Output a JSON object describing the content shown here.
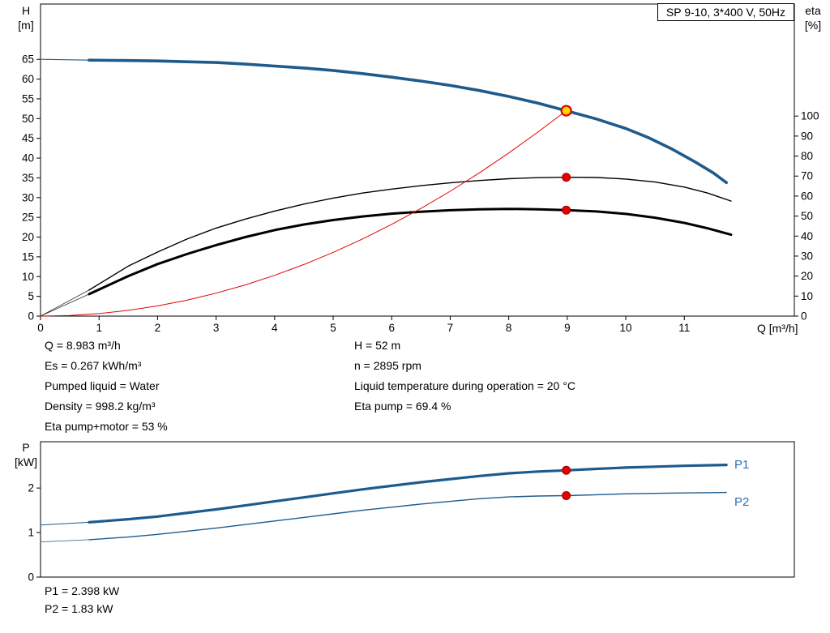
{
  "title_box": {
    "text": "SP 9-10, 3*400 V, 50Hz"
  },
  "axis_labels": {
    "h_top": "H",
    "h_bottom": "[m]",
    "eta_top": "eta",
    "eta_bottom": "[%]",
    "q": "Q [m³/h]",
    "p_top": "P",
    "p_bottom": "[kW]"
  },
  "curve_labels": {
    "p1": "P1",
    "p2": "P2"
  },
  "annotations": {
    "left": [
      "Q = 8.983 m³/h",
      "Es = 0.267 kWh/m³",
      "Pumped liquid = Water",
      "Density = 998.2 kg/m³",
      "Eta pump+motor = 53 %"
    ],
    "right": [
      "H = 52 m",
      "n = 2895 rpm",
      "Liquid temperature during operation = 20 °C",
      "Eta pump = 69.4 %"
    ],
    "power": [
      "P1 = 2.398 kW",
      "P2 = 1.83 kW"
    ]
  },
  "colors": {
    "curve_blue": "#1e5b8d",
    "label_blue": "#2f6eb5",
    "red": "#e60000",
    "red_dark": "#a00000",
    "duty_yellow": "#ffd800",
    "black": "#000000"
  },
  "duty_point": {
    "q": 8.983,
    "h": 52,
    "eta_pump": 69.4,
    "eta_pump_motor": 53,
    "p1": 2.398,
    "p2": 1.83
  },
  "chart_data": [
    {
      "name": "performance-chart",
      "type": "line",
      "title": "SP 9-10, 3*400 V, 50Hz",
      "x": {
        "label": "Q [m³/h]",
        "min": 0,
        "max": 12.88,
        "ticks": [
          0,
          1,
          2,
          3,
          4,
          5,
          6,
          7,
          8,
          9,
          10,
          11
        ]
      },
      "y_left": {
        "label": "H [m]",
        "min": 0,
        "max": 79,
        "ticks": [
          0,
          5,
          10,
          15,
          20,
          25,
          30,
          35,
          40,
          45,
          50,
          55,
          60,
          65
        ]
      },
      "y_right": {
        "label": "eta [%]",
        "min": 0,
        "max": 156,
        "ticks": [
          0,
          10,
          20,
          30,
          40,
          50,
          60,
          70,
          80,
          90,
          100
        ]
      },
      "series": [
        {
          "name": "head-curve-lead",
          "axis": "left",
          "color": "#1e5b8d",
          "width": 1.2,
          "points": [
            [
              0,
              65
            ],
            [
              0.83,
              64.8
            ]
          ]
        },
        {
          "name": "head-curve",
          "axis": "left",
          "color": "#1e5b8d",
          "width": 3.6,
          "points": [
            [
              0.83,
              64.8
            ],
            [
              1.5,
              64.7
            ],
            [
              2,
              64.6
            ],
            [
              2.5,
              64.4
            ],
            [
              3,
              64.2
            ],
            [
              3.5,
              63.8
            ],
            [
              4,
              63.3
            ],
            [
              4.5,
              62.8
            ],
            [
              5,
              62.2
            ],
            [
              5.5,
              61.4
            ],
            [
              6,
              60.5
            ],
            [
              6.5,
              59.5
            ],
            [
              7,
              58.4
            ],
            [
              7.5,
              57.1
            ],
            [
              8,
              55.6
            ],
            [
              8.5,
              53.9
            ],
            [
              8.983,
              52
            ],
            [
              9.5,
              49.9
            ],
            [
              10,
              47.5
            ],
            [
              10.4,
              45.1
            ],
            [
              10.8,
              42.2
            ],
            [
              11.2,
              38.9
            ],
            [
              11.5,
              36.2
            ],
            [
              11.72,
              33.8
            ]
          ]
        },
        {
          "name": "eta-pump-curve-lead",
          "axis": "right",
          "color": "#333333",
          "width": 0.8,
          "points": [
            [
              0,
              0
            ],
            [
              0.83,
              13
            ]
          ]
        },
        {
          "name": "eta-pump-curve",
          "axis": "right",
          "color": "#000000",
          "width": 1.4,
          "points": [
            [
              0.83,
              13
            ],
            [
              1.5,
              25
            ],
            [
              2,
              32
            ],
            [
              2.5,
              38.5
            ],
            [
              3,
              44
            ],
            [
              3.5,
              48.5
            ],
            [
              4,
              52.5
            ],
            [
              4.5,
              56
            ],
            [
              5,
              59
            ],
            [
              5.5,
              61.5
            ],
            [
              6,
              63.5
            ],
            [
              6.5,
              65.2
            ],
            [
              7,
              66.6
            ],
            [
              7.5,
              67.8
            ],
            [
              8,
              68.7
            ],
            [
              8.5,
              69.2
            ],
            [
              8.983,
              69.4
            ],
            [
              9.5,
              69.3
            ],
            [
              10,
              68.5
            ],
            [
              10.5,
              67
            ],
            [
              11,
              64.5
            ],
            [
              11.4,
              61.5
            ],
            [
              11.8,
              57.5
            ]
          ]
        },
        {
          "name": "eta-pump-motor-curve-lead",
          "axis": "right",
          "color": "#333333",
          "width": 0.8,
          "points": [
            [
              0,
              0
            ],
            [
              0.83,
              11
            ]
          ]
        },
        {
          "name": "eta-pump-motor-curve",
          "axis": "right",
          "color": "#000000",
          "width": 3,
          "points": [
            [
              0.83,
              11
            ],
            [
              1.5,
              20
            ],
            [
              2,
              26
            ],
            [
              2.5,
              31
            ],
            [
              3,
              35.5
            ],
            [
              3.5,
              39.5
            ],
            [
              4,
              43
            ],
            [
              4.5,
              45.8
            ],
            [
              5,
              48
            ],
            [
              5.5,
              49.8
            ],
            [
              6,
              51.2
            ],
            [
              6.5,
              52.2
            ],
            [
              7,
              52.9
            ],
            [
              7.5,
              53.4
            ],
            [
              8,
              53.6
            ],
            [
              8.5,
              53.4
            ],
            [
              8.983,
              53
            ],
            [
              9.5,
              52.3
            ],
            [
              10,
              51.1
            ],
            [
              10.5,
              49.2
            ],
            [
              11,
              46.6
            ],
            [
              11.4,
              43.9
            ],
            [
              11.8,
              40.7
            ]
          ]
        },
        {
          "name": "system-curve",
          "axis": "left",
          "color": "#e60000",
          "width": 1,
          "points": [
            [
              0,
              0
            ],
            [
              0.5,
              0.16
            ],
            [
              1,
              0.64
            ],
            [
              1.5,
              1.45
            ],
            [
              2,
              2.58
            ],
            [
              2.5,
              4.03
            ],
            [
              3,
              5.8
            ],
            [
              3.5,
              7.9
            ],
            [
              4,
              10.32
            ],
            [
              4.5,
              13.06
            ],
            [
              5,
              16.12
            ],
            [
              5.5,
              19.51
            ],
            [
              6,
              23.22
            ],
            [
              6.5,
              27.25
            ],
            [
              7,
              31.6
            ],
            [
              7.5,
              36.28
            ],
            [
              8,
              41.28
            ],
            [
              8.5,
              46.6
            ],
            [
              8.983,
              52
            ]
          ]
        }
      ],
      "markers": [
        {
          "type": "point",
          "axis": "right",
          "x": 8.983,
          "y": 69.4
        },
        {
          "type": "point",
          "axis": "right",
          "x": 8.983,
          "y": 53
        },
        {
          "type": "duty-point",
          "axis": "left",
          "x": 8.983,
          "y": 52
        }
      ]
    },
    {
      "name": "power-chart",
      "type": "line",
      "x": {
        "label": "",
        "min": 0,
        "max": 12.88,
        "ticks": []
      },
      "y_left": {
        "label": "P [kW]",
        "min": 0,
        "max": 3.04,
        "ticks": [
          0,
          1,
          2
        ]
      },
      "series": [
        {
          "name": "p1-curve-lead",
          "axis": "left",
          "color": "#1e5b8d",
          "width": 1,
          "points": [
            [
              0,
              1.17
            ],
            [
              0.83,
              1.23
            ]
          ]
        },
        {
          "name": "p1-curve",
          "axis": "left",
          "color": "#1e5b8d",
          "width": 3.2,
          "points": [
            [
              0.83,
              1.23
            ],
            [
              1.5,
              1.3
            ],
            [
              2,
              1.36
            ],
            [
              2.5,
              1.44
            ],
            [
              3,
              1.52
            ],
            [
              3.5,
              1.61
            ],
            [
              4,
              1.7
            ],
            [
              4.5,
              1.79
            ],
            [
              5,
              1.88
            ],
            [
              5.5,
              1.97
            ],
            [
              6,
              2.05
            ],
            [
              6.5,
              2.13
            ],
            [
              7,
              2.2
            ],
            [
              7.5,
              2.27
            ],
            [
              8,
              2.33
            ],
            [
              8.5,
              2.37
            ],
            [
              8.983,
              2.398
            ],
            [
              9.5,
              2.43
            ],
            [
              10,
              2.46
            ],
            [
              10.5,
              2.48
            ],
            [
              11,
              2.5
            ],
            [
              11.72,
              2.52
            ]
          ]
        },
        {
          "name": "p2-curve-lead",
          "axis": "left",
          "color": "#1e5b8d",
          "width": 0.8,
          "points": [
            [
              0,
              0.79
            ],
            [
              0.83,
              0.84
            ]
          ]
        },
        {
          "name": "p2-curve",
          "axis": "left",
          "color": "#1e5b8d",
          "width": 1.4,
          "points": [
            [
              0.83,
              0.84
            ],
            [
              1.5,
              0.9
            ],
            [
              2,
              0.96
            ],
            [
              2.5,
              1.03
            ],
            [
              3,
              1.1
            ],
            [
              3.5,
              1.18
            ],
            [
              4,
              1.26
            ],
            [
              4.5,
              1.34
            ],
            [
              5,
              1.42
            ],
            [
              5.5,
              1.5
            ],
            [
              6,
              1.57
            ],
            [
              6.5,
              1.64
            ],
            [
              7,
              1.7
            ],
            [
              7.5,
              1.76
            ],
            [
              8,
              1.8
            ],
            [
              8.5,
              1.82
            ],
            [
              8.983,
              1.83
            ],
            [
              9.5,
              1.85
            ],
            [
              10,
              1.87
            ],
            [
              10.5,
              1.88
            ],
            [
              11,
              1.89
            ],
            [
              11.72,
              1.9
            ]
          ]
        }
      ],
      "markers": [
        {
          "type": "point",
          "axis": "left",
          "x": 8.983,
          "y": 2.398
        },
        {
          "type": "point",
          "axis": "left",
          "x": 8.983,
          "y": 1.83
        }
      ]
    }
  ]
}
